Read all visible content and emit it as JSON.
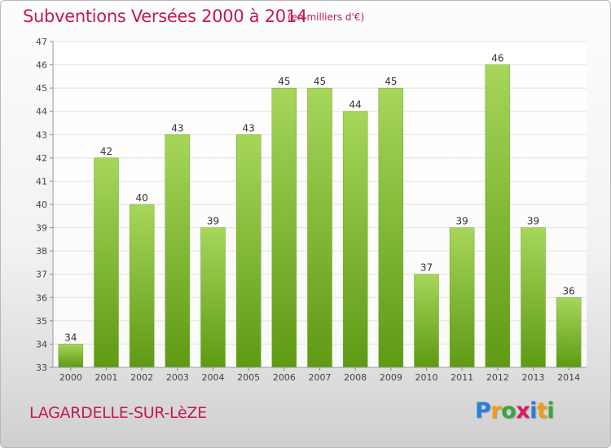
{
  "header": {
    "title": "Subventions Versées 2000 à 2014",
    "unit_note": "(en milliers d'€)"
  },
  "footer": {
    "commune": "LAGARDELLE-SUR-LèZE",
    "logo": {
      "text": "Proxiti",
      "letter_colors": [
        "#2a7fd4",
        "#f39c12",
        "#3aa63a",
        "#d81b60",
        "#2a7fd4",
        "#f39c12",
        "#3aa63a"
      ]
    }
  },
  "colors": {
    "accent": "#c4185b",
    "bar_top": "#a6d65a",
    "bar_bottom": "#5e9a14",
    "grid": "#e2e2e2",
    "axis_text": "#444444"
  },
  "chart_data": {
    "type": "bar",
    "title": "Subventions Versées 2000 à 2014",
    "subtitle": "(en milliers d'€)",
    "xlabel": "",
    "ylabel": "",
    "categories": [
      "2000",
      "2001",
      "2002",
      "2003",
      "2004",
      "2005",
      "2006",
      "2007",
      "2008",
      "2009",
      "2010",
      "2011",
      "2012",
      "2013",
      "2014"
    ],
    "values": [
      34,
      42,
      40,
      43,
      39,
      43,
      45,
      45,
      44,
      45,
      37,
      39,
      46,
      39,
      36
    ],
    "ylim": [
      33,
      47
    ],
    "yticks": [
      33,
      34,
      35,
      36,
      37,
      38,
      39,
      40,
      41,
      42,
      43,
      44,
      45,
      46,
      47
    ],
    "grid": true,
    "data_labels": true
  }
}
